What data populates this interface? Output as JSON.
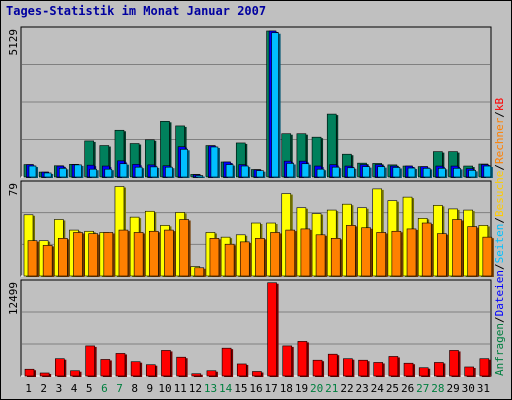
{
  "chart_data": {
    "type": "bar",
    "title": "Tages-Statistik im Monat Januar 2007",
    "days": [
      "1",
      "2",
      "3",
      "4",
      "5",
      "6",
      "7",
      "8",
      "9",
      "10",
      "11",
      "12",
      "13",
      "14",
      "15",
      "16",
      "17",
      "18",
      "19",
      "20",
      "21",
      "22",
      "23",
      "24",
      "25",
      "26",
      "27",
      "28",
      "29",
      "30",
      "31"
    ],
    "weekend_days": [
      "6",
      "7",
      "13",
      "14",
      "20",
      "21",
      "27",
      "28"
    ],
    "weekend_color": "#007f3f",
    "weekday_color": "#000000",
    "legend_right": [
      {
        "text": "Anfragen",
        "color": "#007f3f"
      },
      {
        "text": "/",
        "color": "#000000"
      },
      {
        "text": "Dateien",
        "color": "#0000ff"
      },
      {
        "text": "/",
        "color": "#000000"
      },
      {
        "text": "Seiten",
        "color": "#00c0ff"
      },
      {
        "text": "/",
        "color": "#000000"
      },
      {
        "text": "Besuche",
        "color": "#ffcc00"
      },
      {
        "text": "/",
        "color": "#000000"
      },
      {
        "text": "Rechner",
        "color": "#ff8000"
      },
      {
        "text": "/",
        "color": "#000000"
      },
      {
        "text": "kB",
        "color": "#ff0000"
      }
    ],
    "panels": [
      {
        "id": "hits",
        "max_label": "5129",
        "max": 5129,
        "series": [
          {
            "name": "Anfragen",
            "color": "#00805c",
            "values": [
              430,
              170,
              390,
              440,
              1250,
              1090,
              1620,
              1160,
              1290,
              1930,
              1770,
              90,
              1090,
              520,
              1180,
              260,
              5060,
              1500,
              1500,
              1380,
              2180,
              790,
              480,
              470,
              420,
              380,
              360,
              880,
              880,
              380,
              450
            ]
          },
          {
            "name": "Dateien",
            "color": "#0000ff",
            "values": [
              430,
              170,
              380,
              430,
              410,
              380,
              560,
              440,
              420,
              390,
              1050,
              80,
              1080,
              520,
              430,
              250,
              5060,
              550,
              550,
              380,
              430,
              380,
              430,
              430,
              380,
              380,
              360,
              380,
              380,
              290,
              430
            ]
          },
          {
            "name": "Seiten",
            "color": "#00bfff",
            "values": [
              380,
              140,
              300,
              420,
              270,
              270,
              460,
              340,
              350,
              340,
              960,
              50,
              1040,
              430,
              380,
              220,
              5000,
              470,
              460,
              270,
              340,
              320,
              360,
              360,
              330,
              310,
              300,
              300,
              300,
              230,
              380
            ]
          }
        ]
      },
      {
        "id": "visits",
        "max_label": "79",
        "max": 79,
        "series": [
          {
            "name": "Besuche",
            "color": "#ffff00",
            "values": [
              52,
              30,
              48,
              39,
              38,
              37,
              76,
              50,
              55,
              43,
              54,
              8,
              37,
              33,
              35,
              45,
              45,
              70,
              58,
              53,
              56,
              61,
              58,
              74,
              64,
              67,
              49,
              60,
              57,
              56,
              43
            ]
          },
          {
            "name": "Rechner",
            "color": "#ff8000",
            "values": [
              30,
              26,
              32,
              37,
              36,
              37,
              39,
              37,
              38,
              39,
              48,
              7,
              32,
              27,
              29,
              32,
              37,
              39,
              40,
              35,
              32,
              43,
              41,
              37,
              38,
              40,
              45,
              36,
              48,
              42,
              33
            ]
          }
        ]
      },
      {
        "id": "kb",
        "max_label": "12499",
        "max": 12499,
        "series": [
          {
            "name": "kB",
            "color": "#ff0000",
            "values": [
              900,
              400,
              2300,
              700,
              4000,
              2200,
              3000,
              1900,
              1500,
              3400,
              2500,
              300,
              700,
              3700,
              1600,
              600,
              12400,
              4000,
              4600,
              2100,
              2900,
              2300,
              2100,
              1800,
              2600,
              1700,
              1100,
              1800,
              3400,
              1200,
              2300
            ]
          }
        ]
      }
    ]
  }
}
